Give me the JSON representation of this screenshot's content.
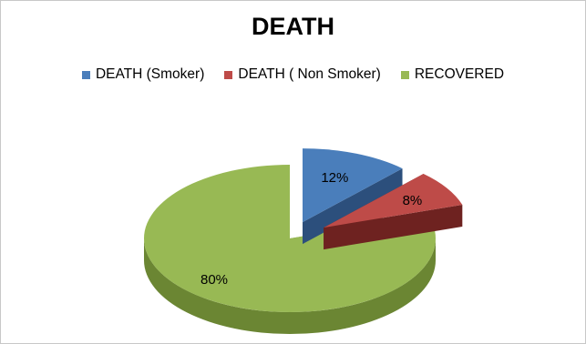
{
  "chart_data": {
    "type": "pie",
    "style": "3d-exploded",
    "title": "DEATH",
    "legend_position": "top",
    "slices": [
      {
        "name": "DEATH (Smoker)",
        "value": 12,
        "label": "12%",
        "color": "#4a7ebb",
        "side_color": "#2c4f7c"
      },
      {
        "name": "DEATH ( Non Smoker)",
        "value": 8,
        "label": "8%",
        "color": "#be4b48",
        "side_color": "#6e2220"
      },
      {
        "name": "RECOVERED",
        "value": 80,
        "label": "80%",
        "color": "#98b954",
        "side_color": "#6b8633"
      }
    ]
  }
}
